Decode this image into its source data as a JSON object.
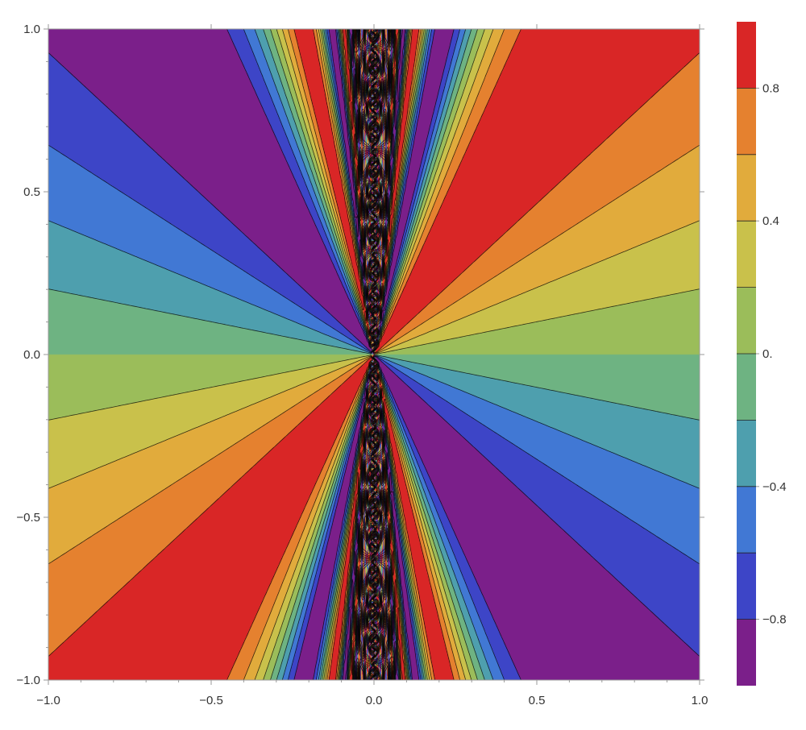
{
  "chart_data": {
    "type": "contour",
    "function": "sin(y/x)",
    "x_range": [
      -1.0,
      1.0
    ],
    "y_range": [
      -1.0,
      1.0
    ],
    "contour_levels": [
      -0.8,
      -0.6,
      -0.4,
      -0.2,
      0.0,
      0.2,
      0.4,
      0.6,
      0.8
    ],
    "value_range": [
      -1.0,
      1.0
    ],
    "x_ticks": [
      {
        "value": -1.0,
        "label": "−1.0"
      },
      {
        "value": -0.5,
        "label": "−0.5"
      },
      {
        "value": 0.0,
        "label": "0.0"
      },
      {
        "value": 0.5,
        "label": "0.5"
      },
      {
        "value": 1.0,
        "label": "1.0"
      }
    ],
    "y_ticks": [
      {
        "value": 1.0,
        "label": "1.0"
      },
      {
        "value": 0.5,
        "label": "0.5"
      },
      {
        "value": 0.0,
        "label": "0.0"
      },
      {
        "value": -0.5,
        "label": "−0.5"
      },
      {
        "value": -1.0,
        "label": "−1.0"
      }
    ],
    "legend": {
      "placement": "right",
      "ticks": [
        {
          "value": 0.8,
          "label": "0.8"
        },
        {
          "value": 0.4,
          "label": "0.4"
        },
        {
          "value": 0.0,
          "label": "0."
        },
        {
          "value": -0.4,
          "label": "−0.4"
        },
        {
          "value": -0.8,
          "label": "−0.8"
        }
      ]
    },
    "band_colors": [
      "#7b1f8a",
      "#3d45c7",
      "#4178d4",
      "#4e9fae",
      "#6eb382",
      "#9bbd5a",
      "#c9c14b",
      "#e1ab3c",
      "#e5812f",
      "#d92626"
    ],
    "line_color": "#000000",
    "frame_color": "#9a9a9a"
  }
}
